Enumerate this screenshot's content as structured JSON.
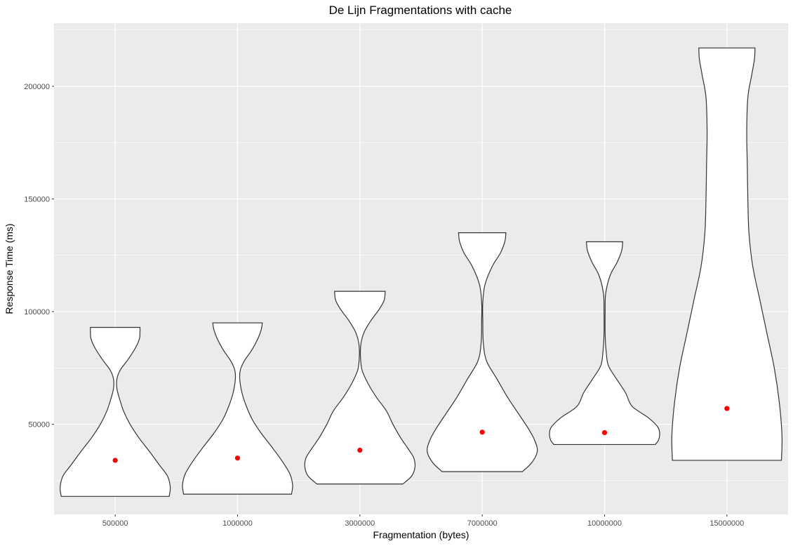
{
  "chart_data": {
    "type": "violin",
    "title": "De Lijn Fragmentations with cache",
    "xlabel": "Fragmentation (bytes)",
    "ylabel": "Response Time (ms)",
    "categories": [
      "500000",
      "1000000",
      "3000000",
      "7000000",
      "10000000",
      "15000000"
    ],
    "y_ticks": [
      50000,
      100000,
      150000,
      200000
    ],
    "y_tick_labels": [
      "50000",
      "100000",
      "150000",
      "200000"
    ],
    "ylim": [
      10000,
      228000
    ],
    "grid": true,
    "mean_marker_color": "#ff0000",
    "panel_color": "#ebebeb",
    "violins": [
      {
        "category": "500000",
        "min": 18000,
        "max": 93000,
        "mean": 34000,
        "density": [
          [
            18000,
            0.98
          ],
          [
            22000,
            1.0
          ],
          [
            27000,
            0.95
          ],
          [
            32000,
            0.8
          ],
          [
            38000,
            0.62
          ],
          [
            44000,
            0.43
          ],
          [
            50000,
            0.27
          ],
          [
            56000,
            0.15
          ],
          [
            62000,
            0.07
          ],
          [
            66000,
            0.03
          ],
          [
            70000,
            0.03
          ],
          [
            74000,
            0.09
          ],
          [
            79000,
            0.24
          ],
          [
            84000,
            0.37
          ],
          [
            88000,
            0.44
          ],
          [
            91000,
            0.45
          ],
          [
            93000,
            0.45
          ]
        ]
      },
      {
        "category": "1000000",
        "min": 19000,
        "max": 95000,
        "mean": 35000,
        "density": [
          [
            19000,
            0.98
          ],
          [
            23000,
            1.0
          ],
          [
            28000,
            0.95
          ],
          [
            34000,
            0.8
          ],
          [
            40000,
            0.62
          ],
          [
            46000,
            0.43
          ],
          [
            52000,
            0.27
          ],
          [
            58000,
            0.16
          ],
          [
            64000,
            0.08
          ],
          [
            70000,
            0.04
          ],
          [
            74000,
            0.05
          ],
          [
            78000,
            0.12
          ],
          [
            83000,
            0.26
          ],
          [
            88000,
            0.37
          ],
          [
            92000,
            0.43
          ],
          [
            95000,
            0.45
          ]
        ]
      },
      {
        "category": "3000000",
        "min": 23500,
        "max": 109000,
        "mean": 38500,
        "density": [
          [
            23500,
            0.78
          ],
          [
            27000,
            0.94
          ],
          [
            31000,
            1.0
          ],
          [
            35000,
            0.98
          ],
          [
            39000,
            0.88
          ],
          [
            44000,
            0.74
          ],
          [
            50000,
            0.6
          ],
          [
            56000,
            0.48
          ],
          [
            62000,
            0.3
          ],
          [
            68000,
            0.15
          ],
          [
            74000,
            0.04
          ],
          [
            80000,
            0.01
          ],
          [
            86000,
            0.02
          ],
          [
            91000,
            0.08
          ],
          [
            96000,
            0.2
          ],
          [
            101000,
            0.35
          ],
          [
            105000,
            0.44
          ],
          [
            109000,
            0.46
          ]
        ]
      },
      {
        "category": "7000000",
        "min": 29000,
        "max": 135000,
        "mean": 46500,
        "density": [
          [
            29000,
            0.73
          ],
          [
            33000,
            0.9
          ],
          [
            38000,
            1.0
          ],
          [
            43000,
            0.95
          ],
          [
            48000,
            0.84
          ],
          [
            55000,
            0.65
          ],
          [
            62000,
            0.46
          ],
          [
            70000,
            0.27
          ],
          [
            78000,
            0.08
          ],
          [
            86000,
            0.02
          ],
          [
            96000,
            0.01
          ],
          [
            104000,
            0.01
          ],
          [
            112000,
            0.05
          ],
          [
            120000,
            0.18
          ],
          [
            126000,
            0.33
          ],
          [
            131000,
            0.41
          ],
          [
            135000,
            0.43
          ]
        ]
      },
      {
        "category": "10000000",
        "min": 41000,
        "max": 131000,
        "mean": 46300,
        "density": [
          [
            41000,
            0.92
          ],
          [
            43000,
            0.98
          ],
          [
            46000,
            1.0
          ],
          [
            49000,
            0.96
          ],
          [
            53000,
            0.79
          ],
          [
            58000,
            0.5
          ],
          [
            64000,
            0.38
          ],
          [
            70000,
            0.22
          ],
          [
            76000,
            0.07
          ],
          [
            82000,
            0.03
          ],
          [
            90000,
            0.01
          ],
          [
            100000,
            0.01
          ],
          [
            108000,
            0.02
          ],
          [
            116000,
            0.1
          ],
          [
            122000,
            0.23
          ],
          [
            127000,
            0.31
          ],
          [
            131000,
            0.33
          ]
        ]
      },
      {
        "category": "15000000",
        "min": 34000,
        "max": 217000,
        "mean": 57000,
        "density": [
          [
            34000,
            0.99
          ],
          [
            45000,
            1.0
          ],
          [
            60000,
            0.95
          ],
          [
            75000,
            0.86
          ],
          [
            90000,
            0.73
          ],
          [
            105000,
            0.6
          ],
          [
            120000,
            0.47
          ],
          [
            135000,
            0.4
          ],
          [
            150000,
            0.38
          ],
          [
            165000,
            0.37
          ],
          [
            180000,
            0.36
          ],
          [
            195000,
            0.38
          ],
          [
            205000,
            0.45
          ],
          [
            212000,
            0.5
          ],
          [
            217000,
            0.51
          ]
        ]
      }
    ]
  }
}
